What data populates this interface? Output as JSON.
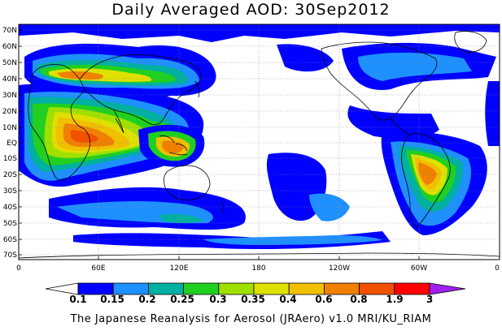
{
  "title": "Daily Averaged AOD: 30Sep2012",
  "credit": "The Japanese Reanalysis for Aerosol (JRAero) v1.0 MRI/KU_RIAM",
  "latitude_labels": [
    "70N",
    "60N",
    "50N",
    "40N",
    "30N",
    "20N",
    "10N",
    "EQ",
    "10S",
    "20S",
    "30S",
    "40S",
    "50S",
    "60S",
    "70S"
  ],
  "longitude_labels": [
    "0",
    "60E",
    "120E",
    "180",
    "120W",
    "60W",
    "0"
  ],
  "colorbar": {
    "labels": [
      "0.1",
      "0.15",
      "0.2",
      "0.25",
      "0.3",
      "0.35",
      "0.4",
      "0.6",
      "0.8",
      "1.9",
      "3"
    ],
    "colors": [
      "#ffffff",
      "#0000ff",
      "#1e90ff",
      "#00b0a0",
      "#20d020",
      "#a0e000",
      "#e0e000",
      "#f0c000",
      "#f08000",
      "#f05000",
      "#ff0000",
      "#a020f0"
    ]
  }
}
